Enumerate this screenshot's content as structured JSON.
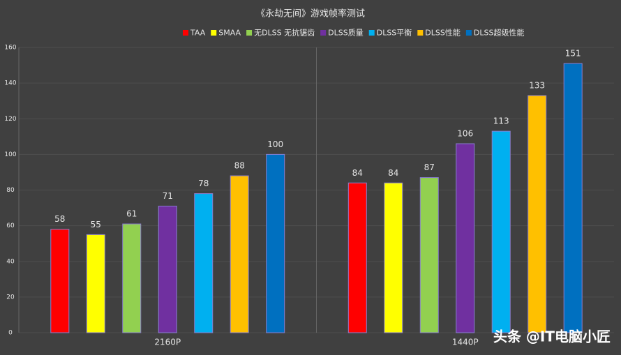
{
  "chart_data": {
    "type": "bar",
    "title": "《永劫无间》游戏帧率测试",
    "categories": [
      "2160P",
      "1440P"
    ],
    "series": [
      {
        "name": "TAA",
        "color": "#ff0000",
        "values": [
          58,
          84
        ]
      },
      {
        "name": "SMAA",
        "color": "#ffff00",
        "values": [
          55,
          84
        ]
      },
      {
        "name": "无DLSS 无抗锯齿",
        "color": "#92d050",
        "values": [
          61,
          87
        ]
      },
      {
        "name": "DLSS质量",
        "color": "#7030a0",
        "values": [
          71,
          106
        ]
      },
      {
        "name": "DLSS平衡",
        "color": "#00b0f0",
        "values": [
          78,
          113
        ]
      },
      {
        "name": "DLSS性能",
        "color": "#ffc000",
        "values": [
          88,
          133
        ]
      },
      {
        "name": "DLSS超级性能",
        "color": "#0070c0",
        "values": [
          100,
          151
        ]
      }
    ],
    "ylim": [
      0,
      160
    ],
    "yticks": [
      0,
      20,
      40,
      60,
      80,
      100,
      120,
      140,
      160
    ],
    "grid": true,
    "legend": "top",
    "watermark": "头条 @IT电脑小匠"
  }
}
